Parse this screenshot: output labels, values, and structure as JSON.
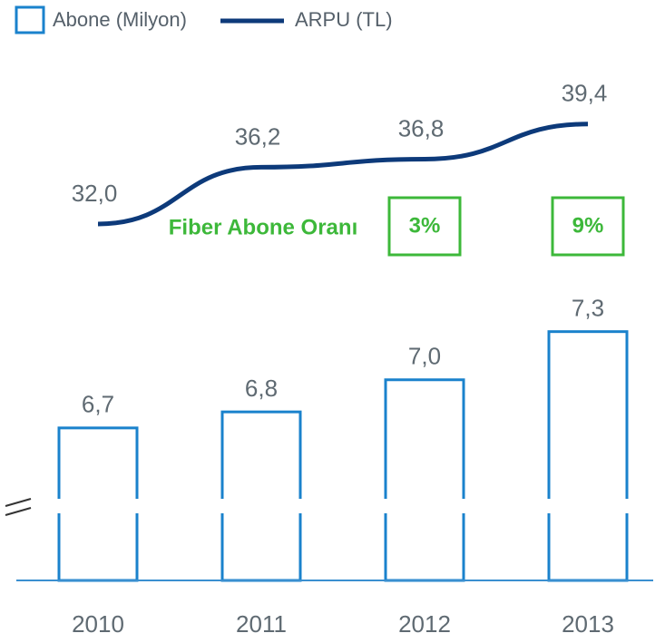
{
  "chart_data": {
    "type": "bar-line",
    "categories": [
      "2010",
      "2011",
      "2012",
      "2013"
    ],
    "series": [
      {
        "name": "Abone (Milyon)",
        "color": "#1a82cc",
        "type": "bar",
        "values": [
          6.7,
          6.8,
          7.0,
          7.3
        ],
        "value_labels": [
          "6,7",
          "6,8",
          "7,0",
          "7,3"
        ]
      },
      {
        "name": "ARPU (TL)",
        "color": "#0d3a7a",
        "type": "line",
        "axis": "y2",
        "values": [
          32.0,
          36.2,
          36.8,
          39.4
        ],
        "value_labels": [
          "32,0",
          "36,2",
          "36,8",
          "39,4"
        ]
      }
    ],
    "ylim": [
      5.75,
      9.14
    ],
    "y2lim": [
      5.6,
      45.9
    ],
    "broken_axis": true,
    "fiber": {
      "label": "Fiber Abone Oranı",
      "color": "#3db83a",
      "values": [
        null,
        null,
        3,
        9
      ],
      "value_labels": [
        null,
        null,
        "3%",
        "9%"
      ]
    }
  }
}
